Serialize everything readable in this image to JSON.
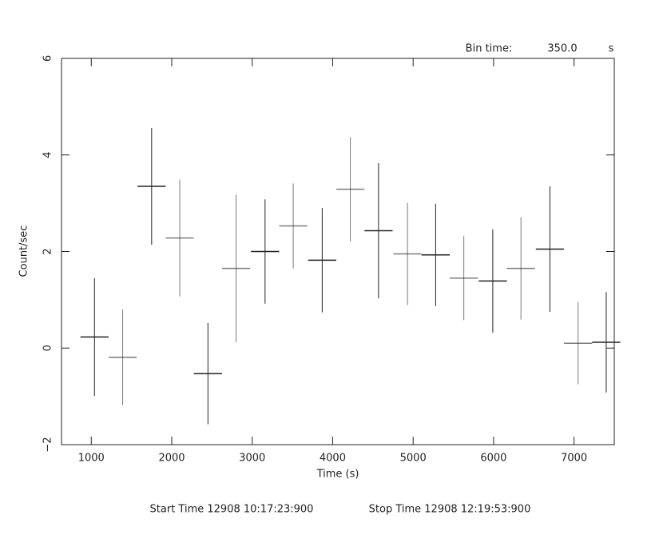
{
  "chart_data": {
    "type": "errorbar",
    "header": {
      "bin_label": "Bin time:",
      "bin_value": "350.0",
      "bin_unit": "s"
    },
    "footer": {
      "start": "Start Time 12908 10:17:23:900",
      "stop": "Stop Time 12908 12:19:53:900"
    },
    "xlabel": "Time (s)",
    "ylabel": "Count/sec",
    "x": [
      1040,
      1390,
      1750,
      2100,
      2450,
      2800,
      3160,
      3510,
      3870,
      4220,
      4570,
      4930,
      5280,
      5630,
      5990,
      6340,
      6700,
      7050,
      7400
    ],
    "xerr": [
      175,
      175,
      175,
      175,
      175,
      175,
      175,
      175,
      175,
      175,
      175,
      175,
      175,
      175,
      175,
      175,
      175,
      175,
      175
    ],
    "values": [
      0.23,
      -0.19,
      3.35,
      2.28,
      -0.53,
      1.65,
      2.0,
      2.53,
      1.82,
      3.29,
      2.43,
      1.95,
      1.93,
      1.45,
      1.39,
      1.65,
      2.05,
      0.1,
      0.12
    ],
    "errors": [
      1.22,
      0.99,
      1.21,
      1.21,
      1.05,
      1.53,
      1.08,
      0.88,
      1.08,
      1.08,
      1.4,
      1.06,
      1.06,
      0.87,
      1.07,
      1.06,
      1.3,
      0.85,
      1.04
    ],
    "color": "#222222",
    "xlim": [
      630,
      7500
    ],
    "xticks": [
      1000,
      2000,
      3000,
      4000,
      5000,
      6000,
      7000
    ],
    "ylim": [
      -2,
      6
    ],
    "yticks": [
      {
        "value": -2,
        "label": "−2"
      },
      0,
      2,
      4,
      6
    ]
  }
}
